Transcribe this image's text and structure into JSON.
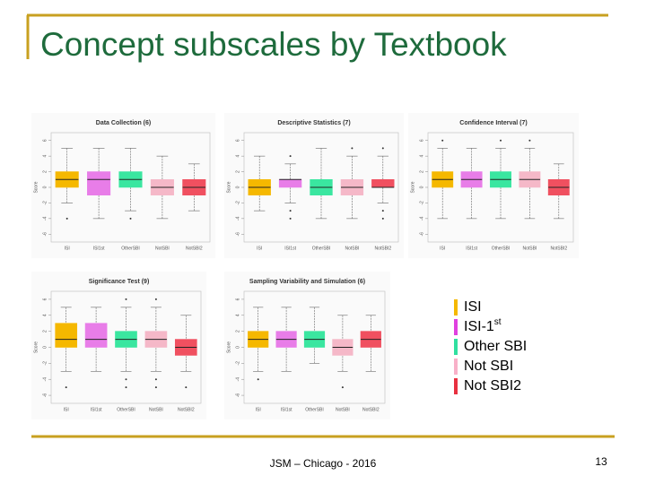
{
  "slide": {
    "title": "Concept subscales by Textbook",
    "footer": "JSM – Chicago - 2016",
    "page_number": "13",
    "legend": [
      {
        "text": "ISI",
        "color": "#f5b800"
      },
      {
        "text": "ISI-1",
        "sup": "st",
        "color": "#e040e0"
      },
      {
        "text": "Other SBI",
        "color": "#30e0a0"
      },
      {
        "text": "Not SBI",
        "color": "#f8b0c8"
      },
      {
        "text": "Not SBI2",
        "color": "#e83040"
      }
    ]
  },
  "chart_data": [
    {
      "type": "box",
      "title": "Data Collection (6)",
      "ylabel": "Score",
      "categories": [
        "ISI",
        "ISI1st",
        "OtherSBI",
        "NotSBI",
        "NotSBI2"
      ],
      "colors": [
        "#f5b800",
        "#e87de8",
        "#3ae6a0",
        "#f5b8c8",
        "#f05060"
      ],
      "ylim": [
        -7,
        7
      ],
      "yticks": [
        -6,
        -4,
        -2,
        0,
        2,
        4,
        6
      ],
      "boxes": [
        {
          "min": -2,
          "q1": 0,
          "median": 1,
          "q3": 2,
          "max": 5,
          "outliers": [
            -4
          ]
        },
        {
          "min": -4,
          "q1": -1,
          "median": 1,
          "q3": 2,
          "max": 5,
          "outliers": []
        },
        {
          "min": -3,
          "q1": 0,
          "median": 1,
          "q3": 2,
          "max": 5,
          "outliers": [
            -4
          ]
        },
        {
          "min": -4,
          "q1": -1,
          "median": 0,
          "q3": 1,
          "max": 4,
          "outliers": []
        },
        {
          "min": -3,
          "q1": -1,
          "median": 0,
          "q3": 1,
          "max": 3,
          "outliers": []
        }
      ]
    },
    {
      "type": "box",
      "title": "Descriptive Statistics (7)",
      "ylabel": "Score",
      "categories": [
        "ISI",
        "ISI1st",
        "OtherSBI",
        "NotSBI",
        "NotSBI2"
      ],
      "colors": [
        "#f5b800",
        "#e87de8",
        "#3ae6a0",
        "#f5b8c8",
        "#f05060"
      ],
      "ylim": [
        -7,
        7
      ],
      "yticks": [
        -6,
        -4,
        -2,
        0,
        2,
        4,
        6
      ],
      "boxes": [
        {
          "min": -3,
          "q1": -1,
          "median": 0,
          "q3": 1,
          "max": 4,
          "outliers": []
        },
        {
          "min": -2,
          "q1": 0,
          "median": 1,
          "q3": 1,
          "max": 3,
          "outliers": [
            4,
            -3,
            -4
          ]
        },
        {
          "min": -4,
          "q1": -1,
          "median": 0,
          "q3": 1,
          "max": 5,
          "outliers": []
        },
        {
          "min": -4,
          "q1": -1,
          "median": 0,
          "q3": 1,
          "max": 4,
          "outliers": [
            5
          ]
        },
        {
          "min": -2,
          "q1": 0,
          "median": 0,
          "q3": 1,
          "max": 4,
          "outliers": [
            5,
            -3,
            -4
          ]
        }
      ]
    },
    {
      "type": "box",
      "title": "Confidence Interval (7)",
      "ylabel": "Score",
      "categories": [
        "ISI",
        "ISI1st",
        "OtherSBI",
        "NotSBI",
        "NotSBI2"
      ],
      "colors": [
        "#f5b800",
        "#e87de8",
        "#3ae6a0",
        "#f5b8c8",
        "#f05060"
      ],
      "ylim": [
        -7,
        7
      ],
      "yticks": [
        -6,
        -4,
        -2,
        0,
        2,
        4,
        6
      ],
      "boxes": [
        {
          "min": -4,
          "q1": 0,
          "median": 1,
          "q3": 2,
          "max": 5,
          "outliers": [
            6
          ]
        },
        {
          "min": -4,
          "q1": 0,
          "median": 1,
          "q3": 2,
          "max": 5,
          "outliers": []
        },
        {
          "min": -4,
          "q1": 0,
          "median": 1,
          "q3": 2,
          "max": 5,
          "outliers": [
            6
          ]
        },
        {
          "min": -4,
          "q1": 0,
          "median": 1,
          "q3": 2,
          "max": 5,
          "outliers": [
            6
          ]
        },
        {
          "min": -4,
          "q1": -1,
          "median": 0,
          "q3": 1,
          "max": 3,
          "outliers": []
        }
      ]
    },
    {
      "type": "box",
      "title": "Significance Test (9)",
      "ylabel": "Score",
      "categories": [
        "ISI",
        "ISI1st",
        "OtherSBI",
        "NotSBI",
        "NotSBI2"
      ],
      "colors": [
        "#f5b800",
        "#e87de8",
        "#3ae6a0",
        "#f5b8c8",
        "#f05060"
      ],
      "ylim": [
        -7,
        7
      ],
      "yticks": [
        -6,
        -4,
        -2,
        0,
        2,
        4,
        6
      ],
      "boxes": [
        {
          "min": -3,
          "q1": 0,
          "median": 1,
          "q3": 3,
          "max": 5,
          "outliers": [
            -5
          ]
        },
        {
          "min": -3,
          "q1": 0,
          "median": 1,
          "q3": 3,
          "max": 5,
          "outliers": []
        },
        {
          "min": -3,
          "q1": 0,
          "median": 1,
          "q3": 2,
          "max": 5,
          "outliers": [
            6,
            -4,
            -5
          ]
        },
        {
          "min": -3,
          "q1": 0,
          "median": 1,
          "q3": 2,
          "max": 5,
          "outliers": [
            6,
            -4,
            -5
          ]
        },
        {
          "min": -3,
          "q1": -1,
          "median": 0,
          "q3": 1,
          "max": 4,
          "outliers": [
            -5
          ]
        }
      ]
    },
    {
      "type": "box",
      "title": "Sampling Variability and Simulation (6)",
      "ylabel": "Score",
      "categories": [
        "ISI",
        "ISI1st",
        "OtherSBI",
        "NotSBI",
        "NotSBI2"
      ],
      "colors": [
        "#f5b800",
        "#e87de8",
        "#3ae6a0",
        "#f5b8c8",
        "#f05060"
      ],
      "ylim": [
        -7,
        7
      ],
      "yticks": [
        -6,
        -4,
        -2,
        0,
        2,
        4,
        6
      ],
      "boxes": [
        {
          "min": -3,
          "q1": 0,
          "median": 1,
          "q3": 2,
          "max": 5,
          "outliers": [
            -4
          ]
        },
        {
          "min": -3,
          "q1": 0,
          "median": 1,
          "q3": 2,
          "max": 5,
          "outliers": []
        },
        {
          "min": -2,
          "q1": 0,
          "median": 1,
          "q3": 2,
          "max": 5,
          "outliers": []
        },
        {
          "min": -3,
          "q1": -1,
          "median": 0,
          "q3": 1,
          "max": 4,
          "outliers": [
            -5
          ]
        },
        {
          "min": -3,
          "q1": 0,
          "median": 1,
          "q3": 2,
          "max": 4,
          "outliers": []
        }
      ]
    }
  ]
}
